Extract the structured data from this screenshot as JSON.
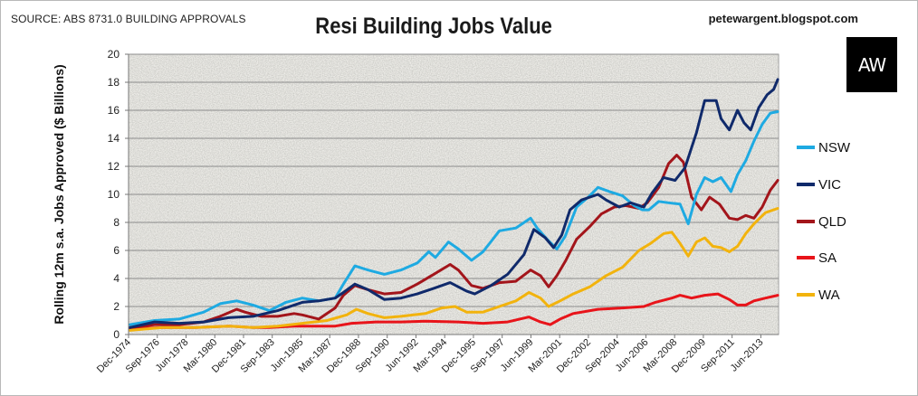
{
  "header": {
    "source": "SOURCE: ABS 8731.0 BUILDING APPROVALS",
    "blog": "petewargent.blogspot.com",
    "logo": "AW"
  },
  "chart_data": {
    "type": "line",
    "title": "Resi Building Jobs Value",
    "xlabel": "",
    "ylabel": "Rolling 12m s.a. Jobs Approved ($ Billions)",
    "ylim": [
      0,
      20
    ],
    "yticks": [
      0,
      2,
      4,
      6,
      8,
      10,
      12,
      14,
      16,
      18,
      20
    ],
    "xlim": [
      1974.92,
      2014.5
    ],
    "grid": true,
    "legend_position": "right",
    "categories": [
      "Dec-1974",
      "Sep-1976",
      "Jun-1978",
      "Mar-1980",
      "Dec-1981",
      "Sep-1983",
      "Jun-1985",
      "Mar-1987",
      "Dec-1988",
      "Sep-1990",
      "Jun-1992",
      "Mar-1994",
      "Dec-1995",
      "Sep-1997",
      "Jun-1999",
      "Mar-2001",
      "Dec-2002",
      "Sep-2004",
      "Jun-2006",
      "Mar-2008",
      "Dec-2009",
      "Sep-2011",
      "Jun-2013"
    ],
    "category_positions": [
      1974.92,
      1976.67,
      1978.42,
      1980.17,
      1981.92,
      1983.67,
      1985.42,
      1987.17,
      1988.92,
      1990.67,
      1992.42,
      1994.17,
      1995.92,
      1997.67,
      1999.42,
      2001.17,
      2002.92,
      2004.67,
      2006.42,
      2008.17,
      2009.92,
      2011.67,
      2013.42
    ],
    "series": [
      {
        "name": "NSW",
        "color": "#1eaae2",
        "x": [
          1975.0,
          1976.5,
          1978.0,
          1979.5,
          1980.5,
          1981.5,
          1982.5,
          1983.5,
          1984.5,
          1985.5,
          1986.5,
          1987.5,
          1988.0,
          1988.7,
          1989.5,
          1990.5,
          1991.5,
          1992.5,
          1993.2,
          1993.6,
          1994.4,
          1995.0,
          1995.8,
          1996.5,
          1997.5,
          1998.5,
          1999.4,
          1999.8,
          2000.4,
          2001.0,
          2001.5,
          2002.2,
          2003.0,
          2003.5,
          2004.2,
          2005.0,
          2005.7,
          2006.2,
          2006.6,
          2007.2,
          2007.8,
          2008.5,
          2009.0,
          2009.5,
          2010.0,
          2010.5,
          2011.0,
          2011.6,
          2012.0,
          2012.5,
          2013.0,
          2013.5,
          2014.0,
          2014.45
        ],
        "values": [
          0.7,
          1.0,
          1.1,
          1.6,
          2.2,
          2.4,
          2.1,
          1.7,
          2.3,
          2.6,
          2.4,
          2.6,
          3.6,
          4.9,
          4.6,
          4.3,
          4.6,
          5.1,
          5.9,
          5.5,
          6.6,
          6.1,
          5.3,
          5.9,
          7.4,
          7.6,
          8.3,
          7.6,
          6.8,
          6.1,
          7.0,
          9.1,
          9.9,
          10.5,
          10.2,
          9.9,
          9.2,
          8.9,
          8.9,
          9.5,
          9.4,
          9.3,
          7.9,
          10.0,
          11.2,
          10.9,
          11.2,
          10.2,
          11.4,
          12.4,
          13.8,
          15.0,
          15.8,
          15.9
        ]
      },
      {
        "name": "VIC",
        "color": "#102a6b",
        "x": [
          1975.0,
          1976.5,
          1978.0,
          1979.5,
          1981.0,
          1982.5,
          1984.0,
          1985.5,
          1986.5,
          1987.5,
          1988.0,
          1988.7,
          1989.5,
          1990.5,
          1991.5,
          1992.5,
          1993.5,
          1994.5,
          1995.5,
          1996.0,
          1997.0,
          1998.0,
          1999.0,
          1999.6,
          2000.3,
          2000.8,
          2001.3,
          2001.8,
          2002.5,
          2003.5,
          2004.0,
          2004.8,
          2005.5,
          2006.3,
          2006.8,
          2007.5,
          2008.2,
          2008.8,
          2009.5,
          2010.0,
          2010.7,
          2011.0,
          2011.5,
          2012.0,
          2012.4,
          2012.8,
          2013.3,
          2013.8,
          2014.2,
          2014.45
        ],
        "values": [
          0.5,
          0.9,
          0.8,
          0.9,
          1.2,
          1.3,
          1.7,
          2.3,
          2.4,
          2.6,
          3.0,
          3.6,
          3.2,
          2.5,
          2.6,
          2.9,
          3.3,
          3.7,
          3.1,
          2.9,
          3.5,
          4.3,
          5.7,
          7.5,
          6.9,
          6.2,
          7.1,
          8.9,
          9.6,
          10.0,
          9.6,
          9.1,
          9.4,
          9.1,
          10.1,
          11.2,
          11.0,
          11.9,
          14.4,
          16.7,
          16.7,
          15.4,
          14.6,
          16.0,
          15.1,
          14.6,
          16.2,
          17.1,
          17.5,
          18.2
        ]
      },
      {
        "name": "QLD",
        "color": "#a3151b",
        "x": [
          1975.0,
          1976.5,
          1978.0,
          1979.5,
          1980.5,
          1981.5,
          1982.0,
          1983.0,
          1984.0,
          1985.0,
          1985.5,
          1986.5,
          1987.5,
          1988.0,
          1988.7,
          1989.5,
          1990.5,
          1991.5,
          1992.5,
          1993.5,
          1994.5,
          1995.0,
          1995.8,
          1996.5,
          1997.5,
          1998.5,
          1999.4,
          2000.0,
          2000.5,
          2001.0,
          2001.5,
          2002.2,
          2003.0,
          2003.7,
          2004.5,
          2005.2,
          2006.0,
          2006.5,
          2007.2,
          2007.8,
          2008.3,
          2008.7,
          2009.2,
          2009.8,
          2010.3,
          2010.9,
          2011.5,
          2012.0,
          2012.5,
          2013.0,
          2013.5,
          2014.0,
          2014.45
        ],
        "values": [
          0.5,
          0.7,
          0.7,
          0.9,
          1.3,
          1.8,
          1.6,
          1.3,
          1.3,
          1.5,
          1.4,
          1.1,
          1.9,
          2.8,
          3.5,
          3.2,
          2.9,
          3.0,
          3.6,
          4.3,
          5.0,
          4.6,
          3.5,
          3.3,
          3.7,
          3.8,
          4.6,
          4.2,
          3.4,
          4.2,
          5.2,
          6.8,
          7.7,
          8.6,
          9.1,
          9.2,
          9.0,
          9.4,
          10.5,
          12.2,
          12.8,
          12.3,
          9.8,
          8.9,
          9.8,
          9.3,
          8.3,
          8.2,
          8.5,
          8.3,
          9.1,
          10.3,
          11.0
        ]
      },
      {
        "name": "SA",
        "color": "#e8141a",
        "x": [
          1975.0,
          1977.0,
          1979.0,
          1981.0,
          1982.5,
          1983.5,
          1985.0,
          1986.5,
          1987.5,
          1988.5,
          1990.0,
          1991.5,
          1993.0,
          1995.0,
          1996.5,
          1998.0,
          1999.3,
          2000.0,
          2000.6,
          2001.2,
          2002.0,
          2003.5,
          2005.0,
          2006.3,
          2007.0,
          2008.0,
          2008.5,
          2009.2,
          2010.0,
          2010.8,
          2011.5,
          2012.0,
          2012.5,
          2013.0,
          2013.7,
          2014.45
        ],
        "values": [
          0.4,
          0.5,
          0.5,
          0.6,
          0.5,
          0.5,
          0.6,
          0.6,
          0.6,
          0.8,
          0.9,
          0.9,
          0.95,
          0.9,
          0.8,
          0.9,
          1.25,
          0.9,
          0.7,
          1.1,
          1.5,
          1.8,
          1.9,
          2.0,
          2.3,
          2.6,
          2.8,
          2.6,
          2.8,
          2.9,
          2.5,
          2.1,
          2.1,
          2.4,
          2.6,
          2.8
        ]
      },
      {
        "name": "WA",
        "color": "#f2b30d",
        "x": [
          1975.0,
          1977.0,
          1979.0,
          1981.0,
          1982.5,
          1984.0,
          1985.5,
          1987.0,
          1988.2,
          1988.8,
          1989.5,
          1990.5,
          1991.5,
          1993.0,
          1994.0,
          1994.8,
          1995.5,
          1996.5,
          1997.5,
          1998.5,
          1999.3,
          2000.0,
          2000.5,
          2001.2,
          2002.0,
          2003.0,
          2004.0,
          2005.0,
          2006.0,
          2006.7,
          2007.5,
          2008.0,
          2008.5,
          2009.0,
          2009.5,
          2010.0,
          2010.5,
          2011.0,
          2011.5,
          2012.0,
          2012.5,
          2013.0,
          2013.7,
          2014.45
        ],
        "values": [
          0.3,
          0.5,
          0.5,
          0.6,
          0.5,
          0.6,
          0.8,
          1.0,
          1.4,
          1.8,
          1.5,
          1.2,
          1.3,
          1.5,
          1.9,
          2.0,
          1.6,
          1.6,
          2.0,
          2.4,
          3.0,
          2.6,
          2.0,
          2.4,
          2.9,
          3.4,
          4.2,
          4.8,
          6.0,
          6.5,
          7.2,
          7.3,
          6.5,
          5.6,
          6.6,
          6.9,
          6.3,
          6.2,
          5.9,
          6.3,
          7.2,
          7.9,
          8.7,
          9.0
        ]
      }
    ]
  }
}
